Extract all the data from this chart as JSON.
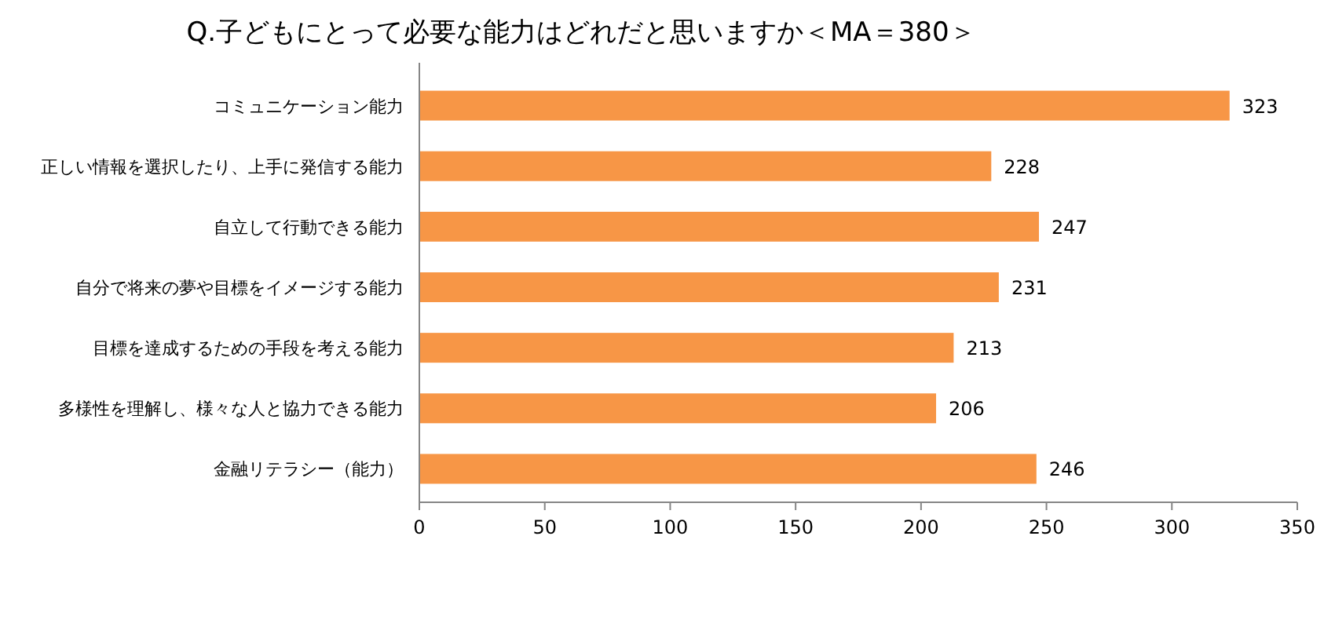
{
  "chart_data": {
    "type": "bar",
    "orientation": "horizontal",
    "title": "Q.子どもにとって必要な能力はどれだと思いますか＜MA＝380＞",
    "categories": [
      "コミュニケーション能力",
      "正しい情報を選択したり、上手に発信する能力",
      "自立して行動できる能力",
      "自分で将来の夢や目標をイメージする能力",
      "目標を達成するための手段を考える能力",
      "多様性を理解し、様々な人と協力できる能力",
      "金融リテラシー（能力）"
    ],
    "values": [
      323,
      228,
      247,
      231,
      213,
      206,
      246
    ],
    "color": "#f79646",
    "xlim": [
      0,
      350
    ],
    "xticks": [
      0,
      50,
      100,
      150,
      200,
      250,
      300,
      350
    ],
    "data_labels": true
  }
}
